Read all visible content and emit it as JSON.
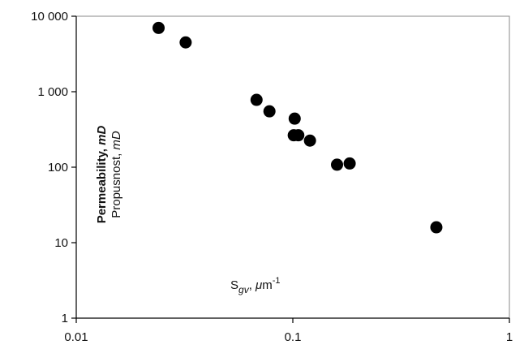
{
  "chart_data": {
    "type": "scatter",
    "x_scale": "log",
    "y_scale": "log",
    "xlim": [
      0.01,
      1
    ],
    "ylim": [
      1,
      10000
    ],
    "x_tick_labels": [
      "0.01",
      "0.1",
      "1"
    ],
    "y_tick_labels": [
      "10 000",
      "1 000",
      "100",
      "10",
      "1"
    ],
    "y_tick_values": [
      10000,
      1000,
      100,
      10,
      1
    ],
    "x_tick_values": [
      0.01,
      0.1,
      1
    ],
    "ylabel_bold": "Permeability, ",
    "ylabel_bold_unit": "mD",
    "ylabel_sub": "Propusnost, ",
    "ylabel_sub_unit": "mD",
    "xlabel_main": "S",
    "xlabel_sub": "gv",
    "xlabel_rest": ", ",
    "xlabel_mu": "μ",
    "xlabel_unit": "m",
    "xlabel_exp": "-1",
    "grid": false,
    "legend": "none",
    "marker_color": "#000000",
    "points": [
      {
        "x": 0.024,
        "y": 7000
      },
      {
        "x": 0.032,
        "y": 4500
      },
      {
        "x": 0.068,
        "y": 780
      },
      {
        "x": 0.078,
        "y": 550
      },
      {
        "x": 0.102,
        "y": 440
      },
      {
        "x": 0.101,
        "y": 265
      },
      {
        "x": 0.106,
        "y": 265
      },
      {
        "x": 0.12,
        "y": 225
      },
      {
        "x": 0.16,
        "y": 108
      },
      {
        "x": 0.183,
        "y": 112
      },
      {
        "x": 0.46,
        "y": 16
      }
    ]
  }
}
